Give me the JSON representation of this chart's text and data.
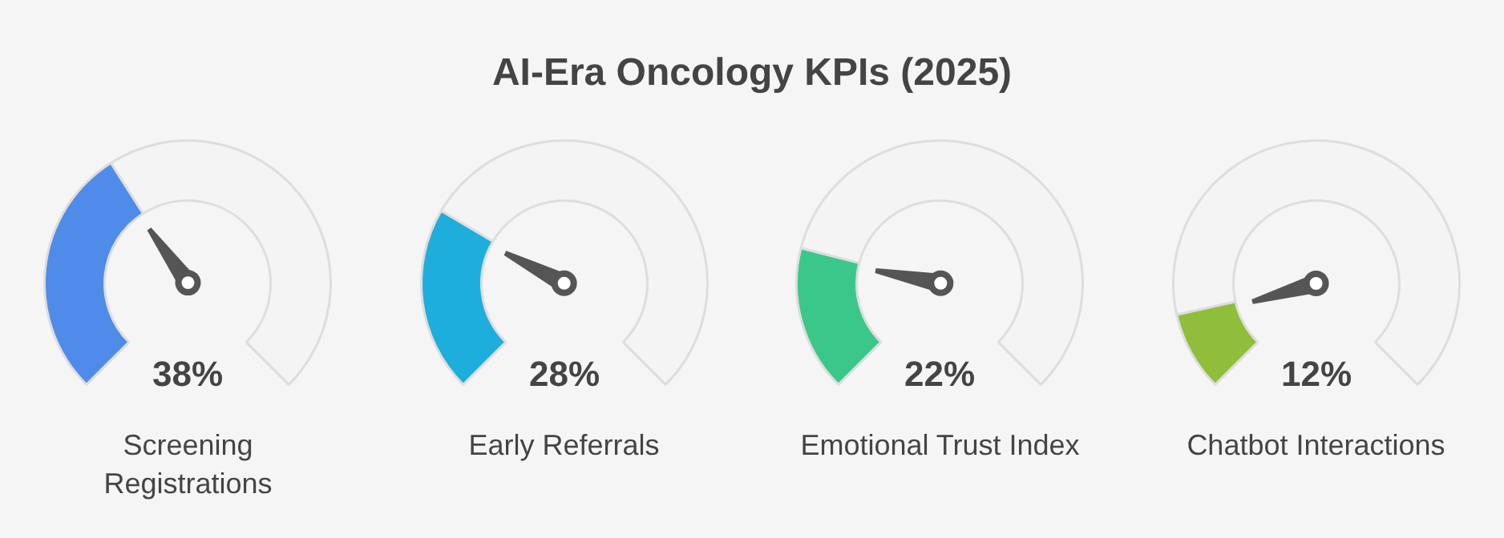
{
  "chart_data": [
    {
      "type": "other",
      "title": "AI-Era Oncology KPIs (2025)"
    },
    {
      "type": "donut",
      "title": "Screening Registrations",
      "categories": [
        null,
        null
      ],
      "values": [
        38,
        62
      ],
      "colors": [
        "#4f8be8",
        "#f4f4f4"
      ],
      "annotations": [
        "38%"
      ]
    },
    {
      "type": "donut",
      "title": "Early Referrals",
      "categories": [
        null,
        null
      ],
      "values": [
        28,
        72
      ],
      "colors": [
        "#1eaedb",
        "#f4f4f4"
      ],
      "annotations": [
        "28%"
      ]
    },
    {
      "type": "donut",
      "title": "Emotional Trust Index",
      "categories": [
        null,
        null
      ],
      "values": [
        22,
        78
      ],
      "colors": [
        "#3cc78a",
        "#f4f4f4"
      ],
      "annotations": [
        "22%"
      ]
    },
    {
      "type": "donut",
      "title": "Chatbot Interactions",
      "categories": [
        null,
        null
      ],
      "values": [
        12,
        88
      ],
      "colors": [
        "#8fbe3a",
        "#f4f4f4"
      ],
      "annotations": [
        "12%"
      ]
    }
  ]
}
